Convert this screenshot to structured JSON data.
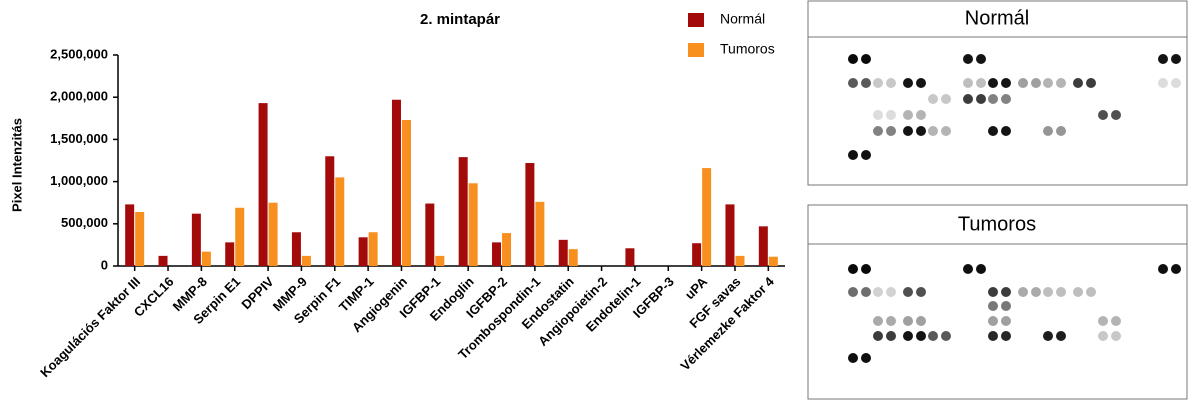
{
  "chart_data": {
    "type": "bar",
    "title": "2. mintapár",
    "y_label": "Pixel Intenzitás",
    "categories": [
      "Koagulációs Faktor III",
      "CXCL16",
      "MMP-8",
      "Serpin E1",
      "DPPIV",
      "MMP-9",
      "Serpin F1",
      "TIMP-1",
      "Angiogenin",
      "IGFBP-1",
      "Endoglin",
      "IGFBP-2",
      "Trombospondin-1",
      "Endostatin",
      "Angiopoietin-2",
      "Endotelin-1",
      "IGFBP-3",
      "uPA",
      "FGF savas",
      "Vérlemezke Faktor 4"
    ],
    "series": [
      {
        "name": "Normál",
        "color": "#a30b0b",
        "values": [
          730000,
          120000,
          620000,
          280000,
          1930000,
          400000,
          1300000,
          340000,
          1970000,
          740000,
          1290000,
          280000,
          1220000,
          310000,
          0,
          210000,
          0,
          270000,
          730000,
          470000
        ]
      },
      {
        "name": "Tumoros",
        "color": "#f7901e",
        "values": [
          640000,
          0,
          170000,
          690000,
          750000,
          120000,
          1050000,
          400000,
          1730000,
          120000,
          980000,
          390000,
          760000,
          200000,
          0,
          0,
          0,
          1160000,
          120000,
          110000
        ]
      }
    ],
    "ylim": [
      0,
      2500000
    ],
    "yticks": [
      0,
      {
        "value": 500000,
        "label": "500,000"
      },
      {
        "value": 1000000,
        "label": "1,000,000"
      },
      {
        "value": 1500000,
        "label": "1,500,000"
      },
      {
        "value": 2000000,
        "label": "2,000,000"
      },
      {
        "value": 2500000,
        "label": "2,500,000"
      }
    ],
    "grid": false,
    "legend": "top-right"
  },
  "blots": [
    {
      "title": "Normál"
    },
    {
      "title": "Tumoros"
    }
  ]
}
